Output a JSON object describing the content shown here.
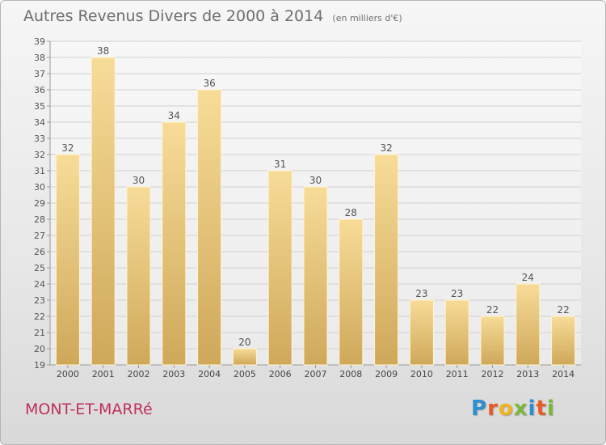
{
  "header": {
    "title": "Autres Revenus Divers de 2000 à 2014",
    "subtitle": "(en milliers d'€)"
  },
  "footer": {
    "location": "MONT-ET-MARRé",
    "brand": "Proxiti",
    "brand_letters": [
      {
        "char": "P",
        "color": "#2e8fd0"
      },
      {
        "char": "r",
        "color": "#e85b25"
      },
      {
        "char": "o",
        "color": "#f2b21c"
      },
      {
        "char": "x",
        "color": "#7ab83a"
      },
      {
        "char": "i",
        "color": "#2e8fd0"
      },
      {
        "char": "t",
        "color": "#e85b25"
      },
      {
        "char": "i",
        "color": "#7ab83a"
      }
    ]
  },
  "chart_data": {
    "type": "bar",
    "title": "Autres Revenus Divers de 2000 à 2014",
    "subtitle": "(en milliers d'€)",
    "categories": [
      "2000",
      "2001",
      "2002",
      "2003",
      "2004",
      "2005",
      "2006",
      "2007",
      "2008",
      "2009",
      "2010",
      "2011",
      "2012",
      "2013",
      "2014"
    ],
    "values": [
      32,
      38,
      30,
      34,
      36,
      20,
      31,
      30,
      28,
      32,
      23,
      23,
      22,
      24,
      22
    ],
    "ylim": [
      19,
      39
    ],
    "yticks": [
      19,
      20,
      21,
      22,
      23,
      24,
      25,
      26,
      27,
      28,
      29,
      30,
      31,
      32,
      33,
      34,
      35,
      36,
      37,
      38,
      39
    ],
    "grid": true,
    "bar_color": "#e8c679",
    "data_labels": true
  }
}
